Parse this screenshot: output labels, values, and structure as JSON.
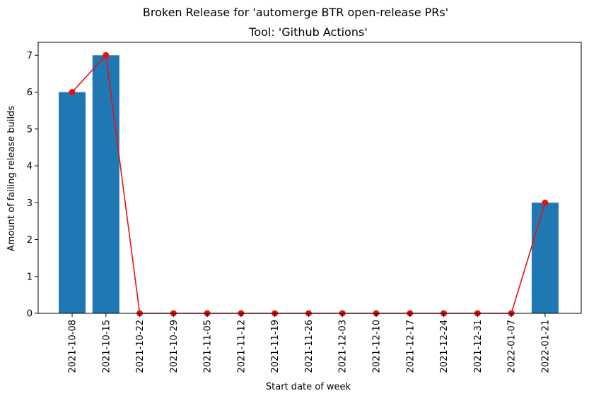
{
  "chart_data": {
    "type": "bar",
    "title": "Broken Release for 'automerge BTR open-release PRs'",
    "subtitle": "Tool: 'Github Actions'",
    "xlabel": "Start date of week",
    "ylabel": "Amount of failing release builds",
    "categories": [
      "2021-10-08",
      "2021-10-15",
      "2021-10-22",
      "2021-10-29",
      "2021-11-05",
      "2021-11-12",
      "2021-11-19",
      "2021-11-26",
      "2021-12-03",
      "2021-12-10",
      "2021-12-17",
      "2021-12-24",
      "2021-12-31",
      "2022-01-07",
      "2022-01-21"
    ],
    "series": [
      {
        "type": "bar",
        "values": [
          6,
          7,
          0,
          0,
          0,
          0,
          0,
          0,
          0,
          0,
          0,
          0,
          0,
          0,
          3
        ]
      },
      {
        "type": "line",
        "values": [
          6,
          7,
          0,
          0,
          0,
          0,
          0,
          0,
          0,
          0,
          0,
          0,
          0,
          0,
          3
        ]
      }
    ],
    "ylim": [
      0,
      7.35
    ],
    "yticks": [
      0,
      1,
      2,
      3,
      4,
      5,
      6,
      7
    ],
    "grid": false,
    "colors": {
      "bar": "#1f77b4",
      "line": "#e8120c",
      "axis": "#000000"
    }
  }
}
